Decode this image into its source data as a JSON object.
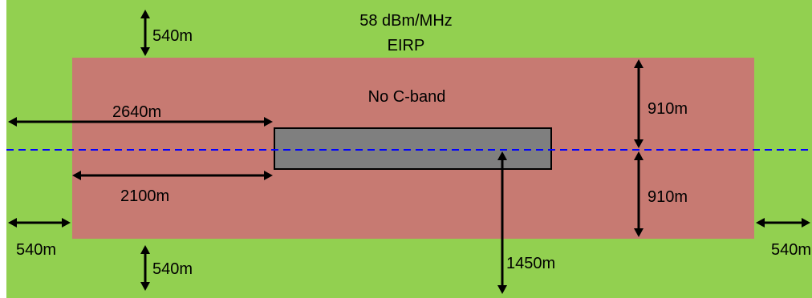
{
  "colors": {
    "outer_zone": "#92d050",
    "exclusion_zone": "#c77a72",
    "runway": "#7f7f7f",
    "centerline": "#0000ff",
    "arrow": "#000000"
  },
  "labels": {
    "eirp_line1": "58 dBm/MHz",
    "eirp_line2": "EIRP",
    "inner_zone": "No C-band",
    "top_buffer": "540m",
    "bottom_buffer": "540m",
    "left_buffer": "540m",
    "right_buffer": "540m",
    "outer_extent": "2640m",
    "inner_extent": "2100m",
    "upper_half_width": "910m",
    "lower_half_width": "910m",
    "runway_offset": "1450m"
  }
}
